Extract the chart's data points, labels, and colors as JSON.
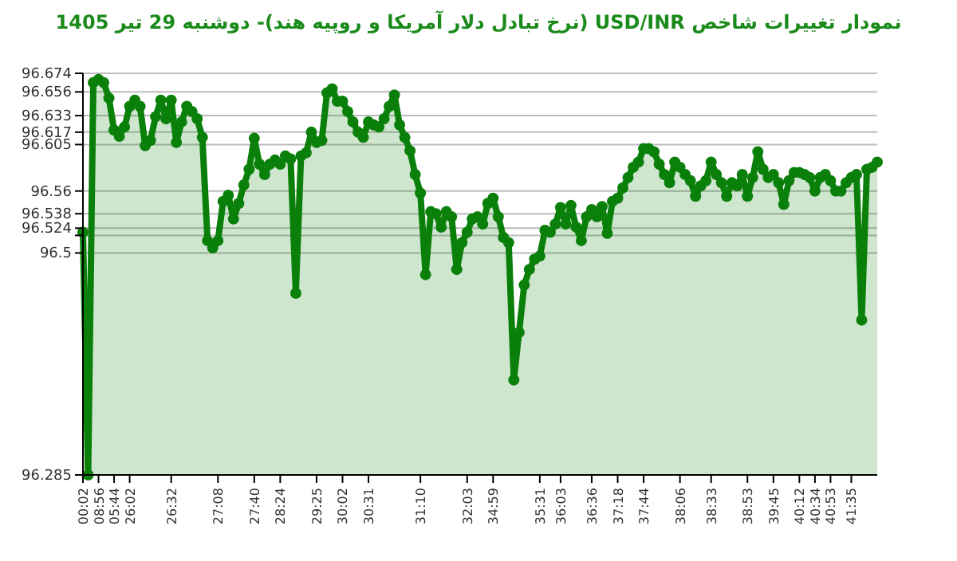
{
  "chart_data": {
    "type": "area",
    "title": "نمودار تغییرات شاخص USD/INR (نرخ تبادل دلار آمریکا و روپیه هند)-  دوشنبه  29 تیر 1405",
    "categories": [
      "00:02",
      null,
      null,
      "08:56",
      null,
      null,
      "05:44",
      null,
      null,
      "26:02",
      null,
      null,
      null,
      null,
      null,
      null,
      null,
      "26:32",
      null,
      null,
      null,
      null,
      null,
      null,
      null,
      null,
      "27:08",
      null,
      null,
      null,
      null,
      null,
      null,
      "27:40",
      null,
      null,
      null,
      null,
      "28:24",
      null,
      null,
      null,
      null,
      null,
      null,
      "29:25",
      null,
      null,
      null,
      null,
      "30:02",
      null,
      null,
      null,
      null,
      "30:31",
      null,
      null,
      null,
      null,
      null,
      null,
      null,
      null,
      null,
      "31:10",
      null,
      null,
      null,
      null,
      null,
      null,
      null,
      null,
      "32:03",
      null,
      null,
      null,
      null,
      "34:59",
      null,
      null,
      null,
      null,
      null,
      null,
      null,
      null,
      "35:31",
      null,
      null,
      null,
      "36:03",
      null,
      null,
      null,
      null,
      null,
      "36:36",
      null,
      null,
      null,
      null,
      "37:18",
      null,
      null,
      null,
      null,
      "37:44",
      null,
      null,
      null,
      null,
      null,
      null,
      "38:06",
      null,
      null,
      null,
      null,
      null,
      "38:33",
      null,
      null,
      null,
      null,
      null,
      null,
      "38:53",
      null,
      null,
      null,
      null,
      "39:45",
      null,
      null,
      null,
      null,
      "40:12",
      null,
      null,
      "40:34",
      null,
      null,
      "40:53",
      null,
      null,
      null,
      "41:35",
      null,
      null,
      null,
      null,
      null
    ],
    "series": [
      {
        "color": "#0a800a",
        "values": [
          96.52,
          96.285,
          96.665,
          96.668,
          96.665,
          96.65,
          96.619,
          96.613,
          96.622,
          96.642,
          96.648,
          96.642,
          96.604,
          96.609,
          96.632,
          96.648,
          96.63,
          96.648,
          96.607,
          96.627,
          96.642,
          96.637,
          96.63,
          96.612,
          96.512,
          96.505,
          96.512,
          96.55,
          96.556,
          96.533,
          96.548,
          96.566,
          96.581,
          96.611,
          96.586,
          96.576,
          96.586,
          96.59,
          96.586,
          96.594,
          96.591,
          96.461,
          96.594,
          96.597,
          96.617,
          96.607,
          96.609,
          96.655,
          96.659,
          96.647,
          96.647,
          96.637,
          96.627,
          96.617,
          96.612,
          96.627,
          96.624,
          96.622,
          96.63,
          96.642,
          96.653,
          96.624,
          96.612,
          96.599,
          96.576,
          96.558,
          96.479,
          96.54,
          96.538,
          96.525,
          96.54,
          96.535,
          96.484,
          96.51,
          96.52,
          96.533,
          96.535,
          96.528,
          96.548,
          96.553,
          96.535,
          96.515,
          96.51,
          96.377,
          96.423,
          96.469,
          96.484,
          96.494,
          96.497,
          96.522,
          96.52,
          96.528,
          96.544,
          96.528,
          96.546,
          96.525,
          96.512,
          96.535,
          96.542,
          96.535,
          96.545,
          96.519,
          96.55,
          96.553,
          96.563,
          96.573,
          96.583,
          96.588,
          96.601,
          96.601,
          96.598,
          96.586,
          96.576,
          96.568,
          96.588,
          96.583,
          96.576,
          96.57,
          96.555,
          96.565,
          96.57,
          96.588,
          96.576,
          96.568,
          96.555,
          96.568,
          96.565,
          96.576,
          96.555,
          96.573,
          96.598,
          96.581,
          96.573,
          96.576,
          96.568,
          96.547,
          96.57,
          96.578,
          96.578,
          96.576,
          96.573,
          96.56,
          96.573,
          96.576,
          96.57,
          96.56,
          96.56,
          96.568,
          96.573,
          96.576,
          96.435,
          96.581,
          96.583,
          96.588
        ]
      }
    ],
    "ylim": [
      96.285,
      96.674
    ],
    "yticks": [
      96.285,
      96.5,
      {
        "value": 96.517,
        "label": null
      },
      96.524,
      96.538,
      96.56,
      96.605,
      96.617,
      96.633,
      96.656,
      96.674
    ],
    "grid": "y",
    "marker": "circle",
    "line_style": "solid"
  }
}
